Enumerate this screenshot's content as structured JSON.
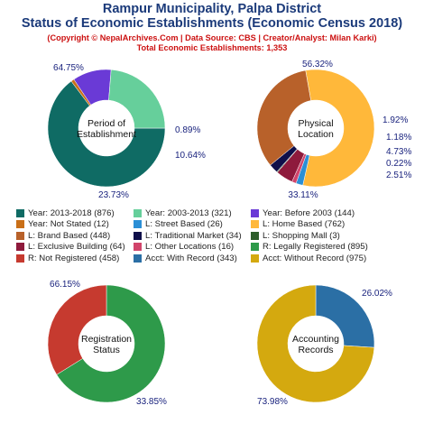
{
  "title_line1": "Rampur Municipality, Palpa District",
  "title_line2": "Status of Economic Establishments (Economic Census 2018)",
  "copyright": "(Copyright © NepalArchives.Com | Data Source: CBS | Creator/Analyst: Milan Karki)",
  "total": "Total Economic Establishments: 1,353",
  "chart_data": [
    {
      "type": "pie",
      "center_label": [
        "Period of",
        "Establishment"
      ],
      "slices": [
        {
          "label": "Year: 2013-2018",
          "value": 876,
          "percent": "64.75%",
          "color": "#0f6b64"
        },
        {
          "label": "Year: Not Stated",
          "value": 12,
          "percent": "0.89%",
          "color": "#c96f17"
        },
        {
          "label": "Year: Before 2003",
          "value": 144,
          "percent": "10.64%",
          "color": "#6a3ad6"
        },
        {
          "label": "Year: 2003-2013",
          "value": 321,
          "percent": "23.73%",
          "color": "#66cf9b"
        }
      ]
    },
    {
      "type": "pie",
      "center_label": [
        "Physical",
        "Location"
      ],
      "slices": [
        {
          "label": "L: Home Based",
          "value": 762,
          "percent": "56.32%",
          "color": "#ffb83a"
        },
        {
          "label": "L: Street Based",
          "value": 26,
          "percent": "1.92%",
          "color": "#2b8fd6"
        },
        {
          "label": "L: Other Locations",
          "value": 16,
          "percent": "1.18%",
          "color": "#d1446b"
        },
        {
          "label": "L: Exclusive Building",
          "value": 64,
          "percent": "4.73%",
          "color": "#8e1a3c"
        },
        {
          "label": "L: Shopping Mall",
          "value": 3,
          "percent": "0.22%",
          "color": "#2e5e2b"
        },
        {
          "label": "L: Traditional Market",
          "value": 34,
          "percent": "2.51%",
          "color": "#0f0f4a"
        },
        {
          "label": "L: Brand Based",
          "value": 448,
          "percent": "33.11%",
          "color": "#b8612a"
        }
      ]
    },
    {
      "type": "pie",
      "center_label": [
        "Registration",
        "Status"
      ],
      "slices": [
        {
          "label": "R: Legally Registered",
          "value": 895,
          "percent": "66.15%",
          "color": "#2e9a4a"
        },
        {
          "label": "R: Not Registered",
          "value": 458,
          "percent": "33.85%",
          "color": "#c63a2f"
        }
      ]
    },
    {
      "type": "pie",
      "center_label": [
        "Accounting",
        "Records"
      ],
      "slices": [
        {
          "label": "Acct: With Record",
          "value": 343,
          "percent": "26.02%",
          "color": "#2b6fa5"
        },
        {
          "label": "Acct: Without Record",
          "value": 975,
          "percent": "73.98%",
          "color": "#d4a90f"
        }
      ]
    }
  ],
  "legend": [
    {
      "text": "Year: 2013-2018 (876)",
      "color": "#0f6b64"
    },
    {
      "text": "Year: 2003-2013 (321)",
      "color": "#66cf9b"
    },
    {
      "text": "Year: Before 2003 (144)",
      "color": "#6a3ad6"
    },
    {
      "text": "Year: Not Stated (12)",
      "color": "#c96f17"
    },
    {
      "text": "L: Street Based (26)",
      "color": "#2b8fd6"
    },
    {
      "text": "L: Home Based (762)",
      "color": "#ffb83a"
    },
    {
      "text": "L: Brand Based (448)",
      "color": "#b8612a"
    },
    {
      "text": "L: Traditional Market (34)",
      "color": "#0f0f4a"
    },
    {
      "text": "L: Shopping Mall (3)",
      "color": "#2e5e2b"
    },
    {
      "text": "L: Exclusive Building (64)",
      "color": "#8e1a3c"
    },
    {
      "text": "L: Other Locations (16)",
      "color": "#d1446b"
    },
    {
      "text": "R: Legally Registered (895)",
      "color": "#2e9a4a"
    },
    {
      "text": "R: Not Registered (458)",
      "color": "#c63a2f"
    },
    {
      "text": "Acct: With Record (343)",
      "color": "#2b6fa5"
    },
    {
      "text": "Acct: Without Record (975)",
      "color": "#d4a90f"
    }
  ]
}
